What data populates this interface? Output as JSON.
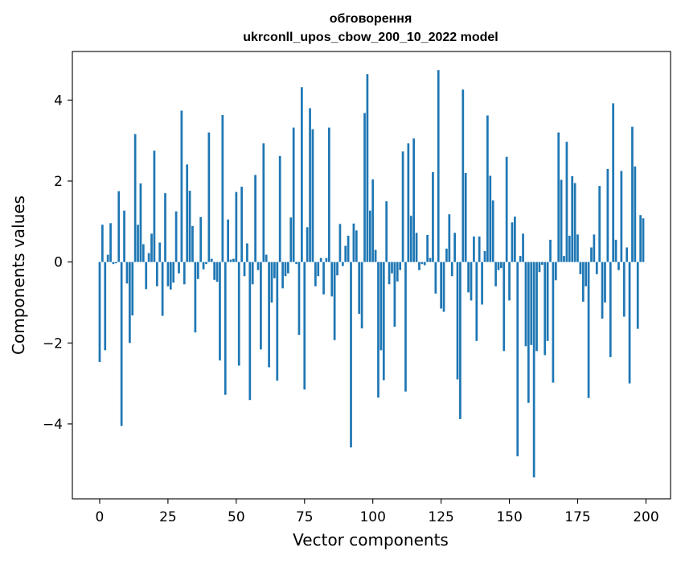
{
  "chart_data": {
    "type": "bar",
    "title_line1": "обговорення",
    "title_line2": "ukrconll_upos_cbow_200_10_2022 model",
    "xlabel": "Vector components",
    "ylabel": "Components values",
    "xlim": [
      -10,
      209
    ],
    "ylim": [
      -5.85,
      5.2
    ],
    "xticks": [
      0,
      25,
      50,
      75,
      100,
      125,
      150,
      175,
      200
    ],
    "yticks": [
      -4,
      -2,
      0,
      2,
      4
    ],
    "xtick_labels": [
      "0",
      "25",
      "50",
      "75",
      "100",
      "125",
      "150",
      "175",
      "200"
    ],
    "ytick_labels": [
      "−4",
      "−2",
      "0",
      "2",
      "4"
    ],
    "bar_color": "#1f77b4",
    "values": [
      -2.47,
      0.92,
      -2.18,
      0.18,
      0.96,
      -0.05,
      -0.03,
      1.75,
      -4.05,
      1.27,
      -0.53,
      -2.0,
      -1.32,
      3.16,
      0.92,
      1.94,
      0.44,
      -0.67,
      0.22,
      0.7,
      2.75,
      -0.6,
      0.48,
      -1.33,
      1.7,
      -0.6,
      -0.68,
      -0.51,
      1.25,
      -0.28,
      3.74,
      -0.55,
      2.41,
      1.76,
      0.89,
      -1.74,
      -0.42,
      1.11,
      -0.18,
      -0.05,
      3.2,
      0.08,
      -0.44,
      -0.49,
      -2.43,
      3.63,
      -3.28,
      1.05,
      0.06,
      0.08,
      1.73,
      -2.56,
      1.86,
      -0.35,
      0.46,
      -3.41,
      -0.55,
      2.15,
      -0.2,
      -2.16,
      2.93,
      0.18,
      -2.6,
      -1.0,
      -0.4,
      -2.93,
      2.62,
      -0.65,
      -0.35,
      -0.28,
      1.1,
      3.32,
      -0.05,
      -1.8,
      4.32,
      -3.15,
      0.86,
      3.8,
      3.28,
      -0.6,
      -0.35,
      0.1,
      -0.8,
      0.1,
      3.32,
      -0.85,
      -1.93,
      -0.33,
      0.94,
      -0.1,
      0.4,
      0.65,
      -4.58,
      0.95,
      0.78,
      -1.28,
      -1.64,
      3.68,
      4.64,
      1.27,
      2.04,
      0.3,
      -3.35,
      -2.18,
      -2.92,
      1.5,
      -0.55,
      -0.28,
      -1.6,
      -0.48,
      -0.2,
      2.73,
      -3.2,
      2.93,
      1.14,
      3.05,
      0.72,
      -0.2,
      -0.05,
      -0.08,
      0.67,
      0.1,
      2.22,
      -0.78,
      4.74,
      -1.15,
      -1.23,
      0.33,
      1.18,
      -0.35,
      0.72,
      -2.9,
      -3.88,
      4.26,
      2.2,
      -0.75,
      -0.95,
      0.63,
      -1.95,
      0.63,
      -1.05,
      0.27,
      3.62,
      2.13,
      1.52,
      -0.6,
      -0.2,
      -0.15,
      -2.2,
      2.6,
      -0.95,
      0.98,
      1.12,
      -4.8,
      0.15,
      0.7,
      -2.08,
      -3.48,
      -2.05,
      -5.32,
      -2.2,
      -0.25,
      -0.07,
      -2.3,
      -1.95,
      0.55,
      -2.98,
      -0.45,
      3.2,
      2.03,
      0.15,
      2.97,
      0.65,
      2.12,
      1.95,
      0.68,
      -0.3,
      -0.98,
      -0.6,
      -3.36,
      0.36,
      0.68,
      -0.3,
      1.88,
      -1.4,
      -1.0,
      2.3,
      -2.35,
      3.92,
      0.55,
      -0.2,
      2.25,
      -1.35,
      0.36,
      -3.0,
      3.34,
      2.36,
      -1.65,
      1.16,
      1.08
    ]
  }
}
